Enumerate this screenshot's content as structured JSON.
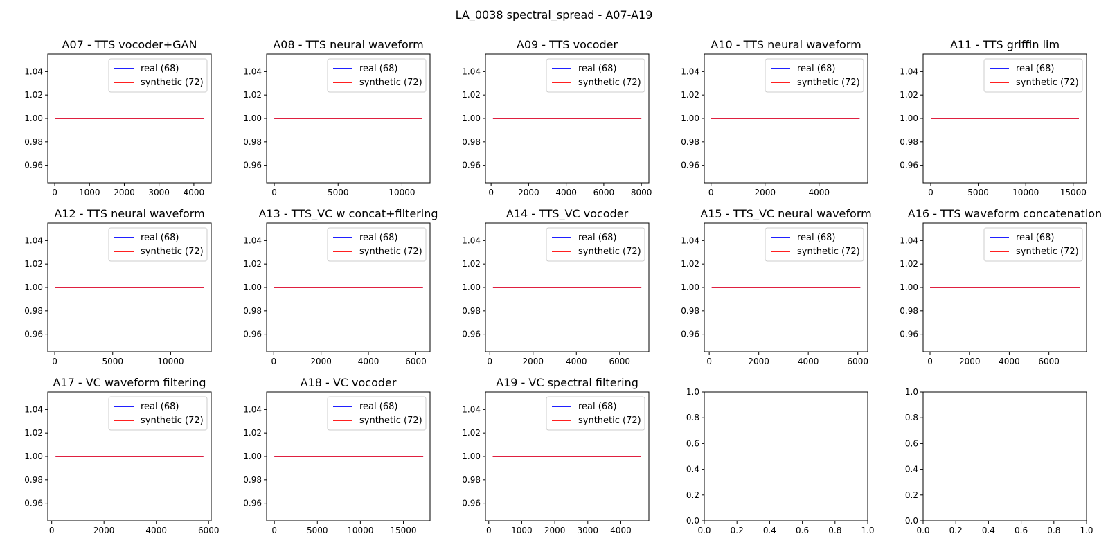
{
  "figure_title": "LA_0038 spectral_spread - A07-A19",
  "colors": {
    "real": "#0000ff",
    "synthetic": "#ff0000"
  },
  "chart_data": [
    {
      "type": "line",
      "title": "A07 - TTS vocoder+GAN",
      "xlim": [
        -200,
        4500
      ],
      "ylim": [
        0.945,
        1.055
      ],
      "xticks": [
        0,
        1000,
        2000,
        3000,
        4000
      ],
      "xtick_labels": [
        "0",
        "1000",
        "2000",
        "3000",
        "4000"
      ],
      "yticks": [
        0.96,
        0.98,
        1.0,
        1.02,
        1.04
      ],
      "ytick_labels": [
        "0.96",
        "0.98",
        "1.00",
        "1.02",
        "1.04"
      ],
      "legend": "upper right",
      "series": [
        {
          "name": "real (68)",
          "color": "#0000ff",
          "x": [
            0,
            4300
          ],
          "y": [
            1.0,
            1.0
          ]
        },
        {
          "name": "synthetic (72)",
          "color": "#ff0000",
          "x": [
            0,
            4300
          ],
          "y": [
            1.0,
            1.0
          ]
        }
      ]
    },
    {
      "type": "line",
      "title": "A08 - TTS neural waveform",
      "xlim": [
        -600,
        12200
      ],
      "ylim": [
        0.945,
        1.055
      ],
      "xticks": [
        0,
        5000,
        10000
      ],
      "xtick_labels": [
        "0",
        "5000",
        "10000"
      ],
      "yticks": [
        0.96,
        0.98,
        1.0,
        1.02,
        1.04
      ],
      "ytick_labels": [
        "0.96",
        "0.98",
        "1.00",
        "1.02",
        "1.04"
      ],
      "legend": "upper right",
      "series": [
        {
          "name": "real (68)",
          "color": "#0000ff",
          "x": [
            0,
            11600
          ],
          "y": [
            1.0,
            1.0
          ]
        },
        {
          "name": "synthetic (72)",
          "color": "#ff0000",
          "x": [
            0,
            11600
          ],
          "y": [
            1.0,
            1.0
          ]
        }
      ]
    },
    {
      "type": "line",
      "title": "A09 - TTS vocoder",
      "xlim": [
        -300,
        8400
      ],
      "ylim": [
        0.945,
        1.055
      ],
      "xticks": [
        0,
        2000,
        4000,
        6000,
        8000
      ],
      "xtick_labels": [
        "0",
        "2000",
        "4000",
        "6000",
        "8000"
      ],
      "yticks": [
        0.96,
        0.98,
        1.0,
        1.02,
        1.04
      ],
      "ytick_labels": [
        "0.96",
        "0.98",
        "1.00",
        "1.02",
        "1.04"
      ],
      "legend": "upper right",
      "series": [
        {
          "name": "real (68)",
          "color": "#0000ff",
          "x": [
            100,
            8000
          ],
          "y": [
            1.0,
            1.0
          ]
        },
        {
          "name": "synthetic (72)",
          "color": "#ff0000",
          "x": [
            100,
            8000
          ],
          "y": [
            1.0,
            1.0
          ]
        }
      ]
    },
    {
      "type": "line",
      "title": "A10 - TTS neural waveform",
      "xlim": [
        -250,
        5800
      ],
      "ylim": [
        0.945,
        1.055
      ],
      "xticks": [
        0,
        2000,
        4000
      ],
      "xtick_labels": [
        "0",
        "2000",
        "4000"
      ],
      "yticks": [
        0.96,
        0.98,
        1.0,
        1.02,
        1.04
      ],
      "ytick_labels": [
        "0.96",
        "0.98",
        "1.00",
        "1.02",
        "1.04"
      ],
      "legend": "upper right",
      "series": [
        {
          "name": "real (68)",
          "color": "#0000ff",
          "x": [
            0,
            5500
          ],
          "y": [
            1.0,
            1.0
          ]
        },
        {
          "name": "synthetic (72)",
          "color": "#ff0000",
          "x": [
            0,
            5500
          ],
          "y": [
            1.0,
            1.0
          ]
        }
      ]
    },
    {
      "type": "line",
      "title": "A11 - TTS griffin lim",
      "xlim": [
        -800,
        16400
      ],
      "ylim": [
        0.945,
        1.055
      ],
      "xticks": [
        0,
        5000,
        10000,
        15000
      ],
      "xtick_labels": [
        "0",
        "5000",
        "10000",
        "15000"
      ],
      "yticks": [
        0.96,
        0.98,
        1.0,
        1.02,
        1.04
      ],
      "ytick_labels": [
        "0.96",
        "0.98",
        "1.00",
        "1.02",
        "1.04"
      ],
      "legend": "upper right",
      "series": [
        {
          "name": "real (68)",
          "color": "#0000ff",
          "x": [
            0,
            15600
          ],
          "y": [
            1.0,
            1.0
          ]
        },
        {
          "name": "synthetic (72)",
          "color": "#ff0000",
          "x": [
            0,
            15600
          ],
          "y": [
            1.0,
            1.0
          ]
        }
      ]
    },
    {
      "type": "line",
      "title": "A12 - TTS neural waveform",
      "xlim": [
        -600,
        13500
      ],
      "ylim": [
        0.945,
        1.055
      ],
      "xticks": [
        0,
        5000,
        10000
      ],
      "xtick_labels": [
        "0",
        "5000",
        "10000"
      ],
      "yticks": [
        0.96,
        0.98,
        1.0,
        1.02,
        1.04
      ],
      "ytick_labels": [
        "0.96",
        "0.98",
        "1.00",
        "1.02",
        "1.04"
      ],
      "legend": "upper right",
      "series": [
        {
          "name": "real (68)",
          "color": "#0000ff",
          "x": [
            0,
            12900
          ],
          "y": [
            1.0,
            1.0
          ]
        },
        {
          "name": "synthetic (72)",
          "color": "#ff0000",
          "x": [
            0,
            12900
          ],
          "y": [
            1.0,
            1.0
          ]
        }
      ]
    },
    {
      "type": "line",
      "title": "A13 - TTS_VC w concat+filtering",
      "xlim": [
        -300,
        6600
      ],
      "ylim": [
        0.945,
        1.055
      ],
      "xticks": [
        0,
        2000,
        4000,
        6000
      ],
      "xtick_labels": [
        "0",
        "2000",
        "4000",
        "6000"
      ],
      "yticks": [
        0.96,
        0.98,
        1.0,
        1.02,
        1.04
      ],
      "ytick_labels": [
        "0.96",
        "0.98",
        "1.00",
        "1.02",
        "1.04"
      ],
      "legend": "upper right",
      "series": [
        {
          "name": "real (68)",
          "color": "#0000ff",
          "x": [
            0,
            6300
          ],
          "y": [
            1.0,
            1.0
          ]
        },
        {
          "name": "synthetic (72)",
          "color": "#ff0000",
          "x": [
            0,
            6300
          ],
          "y": [
            1.0,
            1.0
          ]
        }
      ]
    },
    {
      "type": "line",
      "title": "A14 - TTS_VC vocoder",
      "xlim": [
        -200,
        7350
      ],
      "ylim": [
        0.945,
        1.055
      ],
      "xticks": [
        0,
        2000,
        4000,
        6000
      ],
      "xtick_labels": [
        "0",
        "2000",
        "4000",
        "6000"
      ],
      "yticks": [
        0.96,
        0.98,
        1.0,
        1.02,
        1.04
      ],
      "ytick_labels": [
        "0.96",
        "0.98",
        "1.00",
        "1.02",
        "1.04"
      ],
      "legend": "upper right",
      "series": [
        {
          "name": "real (68)",
          "color": "#0000ff",
          "x": [
            150,
            7000
          ],
          "y": [
            1.0,
            1.0
          ]
        },
        {
          "name": "synthetic (72)",
          "color": "#ff0000",
          "x": [
            150,
            7000
          ],
          "y": [
            1.0,
            1.0
          ]
        }
      ]
    },
    {
      "type": "line",
      "title": "A15 - TTS_VC neural waveform",
      "xlim": [
        -200,
        6400
      ],
      "ylim": [
        0.945,
        1.055
      ],
      "xticks": [
        0,
        2000,
        4000,
        6000
      ],
      "xtick_labels": [
        "0",
        "2000",
        "4000",
        "6000"
      ],
      "yticks": [
        0.96,
        0.98,
        1.0,
        1.02,
        1.04
      ],
      "ytick_labels": [
        "0.96",
        "0.98",
        "1.00",
        "1.02",
        "1.04"
      ],
      "legend": "upper right",
      "series": [
        {
          "name": "real (68)",
          "color": "#0000ff",
          "x": [
            100,
            6100
          ],
          "y": [
            1.0,
            1.0
          ]
        },
        {
          "name": "synthetic (72)",
          "color": "#ff0000",
          "x": [
            100,
            6100
          ],
          "y": [
            1.0,
            1.0
          ]
        }
      ]
    },
    {
      "type": "line",
      "title": "A16 - TTS waveform concatenation",
      "xlim": [
        -350,
        7900
      ],
      "ylim": [
        0.945,
        1.055
      ],
      "xticks": [
        0,
        2000,
        4000,
        6000
      ],
      "xtick_labels": [
        "0",
        "2000",
        "4000",
        "6000"
      ],
      "yticks": [
        0.96,
        0.98,
        1.0,
        1.02,
        1.04
      ],
      "ytick_labels": [
        "0.96",
        "0.98",
        "1.00",
        "1.02",
        "1.04"
      ],
      "legend": "upper right",
      "series": [
        {
          "name": "real (68)",
          "color": "#0000ff",
          "x": [
            0,
            7550
          ],
          "y": [
            1.0,
            1.0
          ]
        },
        {
          "name": "synthetic (72)",
          "color": "#ff0000",
          "x": [
            0,
            7550
          ],
          "y": [
            1.0,
            1.0
          ]
        }
      ]
    },
    {
      "type": "line",
      "title": "A17 - VC waveform filtering",
      "xlim": [
        -150,
        6100
      ],
      "ylim": [
        0.945,
        1.055
      ],
      "xticks": [
        0,
        2000,
        4000,
        6000
      ],
      "xtick_labels": [
        "0",
        "2000",
        "4000",
        "6000"
      ],
      "yticks": [
        0.96,
        0.98,
        1.0,
        1.02,
        1.04
      ],
      "ytick_labels": [
        "0.96",
        "0.98",
        "1.00",
        "1.02",
        "1.04"
      ],
      "legend": "upper right",
      "series": [
        {
          "name": "real (68)",
          "color": "#0000ff",
          "x": [
            150,
            5800
          ],
          "y": [
            1.0,
            1.0
          ]
        },
        {
          "name": "synthetic (72)",
          "color": "#ff0000",
          "x": [
            150,
            5800
          ],
          "y": [
            1.0,
            1.0
          ]
        }
      ]
    },
    {
      "type": "line",
      "title": "A18 - VC vocoder",
      "xlim": [
        -900,
        18100
      ],
      "ylim": [
        0.945,
        1.055
      ],
      "xticks": [
        0,
        5000,
        10000,
        15000
      ],
      "xtick_labels": [
        "0",
        "5000",
        "10000",
        "15000"
      ],
      "yticks": [
        0.96,
        0.98,
        1.0,
        1.02,
        1.04
      ],
      "ytick_labels": [
        "0.96",
        "0.98",
        "1.00",
        "1.02",
        "1.04"
      ],
      "legend": "upper right",
      "series": [
        {
          "name": "real (68)",
          "color": "#0000ff",
          "x": [
            0,
            17300
          ],
          "y": [
            1.0,
            1.0
          ]
        },
        {
          "name": "synthetic (72)",
          "color": "#ff0000",
          "x": [
            0,
            17300
          ],
          "y": [
            1.0,
            1.0
          ]
        }
      ]
    },
    {
      "type": "line",
      "title": "A19 - VC spectral filtering",
      "xlim": [
        -100,
        4850
      ],
      "ylim": [
        0.945,
        1.055
      ],
      "xticks": [
        0,
        1000,
        2000,
        3000,
        4000
      ],
      "xtick_labels": [
        "0",
        "1000",
        "2000",
        "3000",
        "4000"
      ],
      "yticks": [
        0.96,
        0.98,
        1.0,
        1.02,
        1.04
      ],
      "ytick_labels": [
        "0.96",
        "0.98",
        "1.00",
        "1.02",
        "1.04"
      ],
      "legend": "upper right",
      "series": [
        {
          "name": "real (68)",
          "color": "#0000ff",
          "x": [
            120,
            4600
          ],
          "y": [
            1.0,
            1.0
          ]
        },
        {
          "name": "synthetic (72)",
          "color": "#ff0000",
          "x": [
            120,
            4600
          ],
          "y": [
            1.0,
            1.0
          ]
        }
      ]
    },
    {
      "type": "line",
      "title": "",
      "xlim": [
        0,
        1
      ],
      "ylim": [
        0,
        1
      ],
      "xticks": [
        0,
        0.2,
        0.4,
        0.6,
        0.8,
        1.0
      ],
      "xtick_labels": [
        "0.0",
        "0.2",
        "0.4",
        "0.6",
        "0.8",
        "1.0"
      ],
      "yticks": [
        0,
        0.2,
        0.4,
        0.6,
        0.8,
        1.0
      ],
      "ytick_labels": [
        "0.0",
        "0.2",
        "0.4",
        "0.6",
        "0.8",
        "1.0"
      ],
      "legend": "",
      "series": []
    },
    {
      "type": "line",
      "title": "",
      "xlim": [
        0,
        1
      ],
      "ylim": [
        0,
        1
      ],
      "xticks": [
        0,
        0.2,
        0.4,
        0.6,
        0.8,
        1.0
      ],
      "xtick_labels": [
        "0.0",
        "0.2",
        "0.4",
        "0.6",
        "0.8",
        "1.0"
      ],
      "yticks": [
        0,
        0.2,
        0.4,
        0.6,
        0.8,
        1.0
      ],
      "ytick_labels": [
        "0.0",
        "0.2",
        "0.4",
        "0.6",
        "0.8",
        "1.0"
      ],
      "legend": "",
      "series": []
    }
  ]
}
